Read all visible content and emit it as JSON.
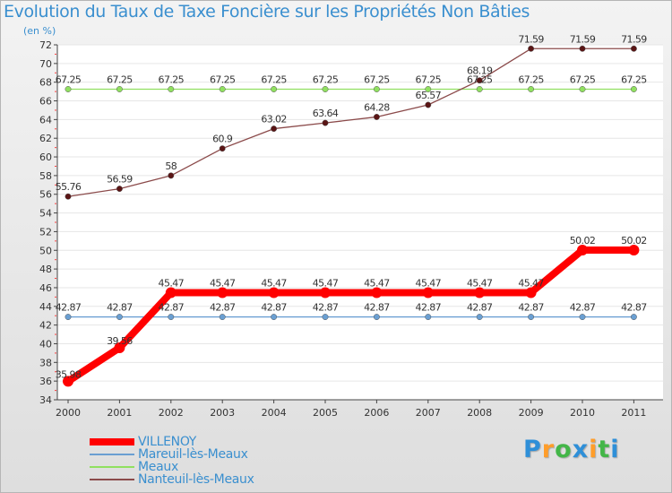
{
  "chart_data": {
    "type": "line",
    "title": "Evolution du Taux de Taxe Foncière sur les Propriétés Non Bâties",
    "ylabel": "(en %)",
    "xlabel": "",
    "ylim": [
      34,
      72
    ],
    "yticks": [
      34,
      36,
      38,
      40,
      42,
      44,
      46,
      48,
      50,
      52,
      54,
      56,
      58,
      60,
      62,
      64,
      66,
      68,
      70,
      72
    ],
    "categories": [
      "2000",
      "2001",
      "2002",
      "2003",
      "2004",
      "2005",
      "2006",
      "2007",
      "2008",
      "2009",
      "2010",
      "2011"
    ],
    "series": [
      {
        "name": "VILLENOY",
        "color": "#ff0000",
        "values": [
          35.98,
          39.56,
          45.47,
          45.47,
          45.47,
          45.47,
          45.47,
          45.47,
          45.47,
          45.47,
          50.02,
          50.02
        ],
        "labels": [
          "35.98",
          "39.56",
          "45.47",
          "45.47",
          "45.47",
          "45.47",
          "45.47",
          "45.47",
          "45.47",
          "45.47",
          "50.02",
          "50.02"
        ]
      },
      {
        "name": "Mareuil-lès-Meaux",
        "color": "#6a9fd2",
        "values": [
          42.87,
          42.87,
          42.87,
          42.87,
          42.87,
          42.87,
          42.87,
          42.87,
          42.87,
          42.87,
          42.87,
          42.87
        ],
        "labels": [
          "42.87",
          "42.87",
          "42.87",
          "42.87",
          "42.87",
          "42.87",
          "42.87",
          "42.87",
          "42.87",
          "42.87",
          "42.87",
          "42.87"
        ]
      },
      {
        "name": "Meaux",
        "color": "#90e060",
        "values": [
          67.25,
          67.25,
          67.25,
          67.25,
          67.25,
          67.25,
          67.25,
          67.25,
          67.25,
          67.25,
          67.25,
          67.25
        ],
        "labels": [
          "67.25",
          "67.25",
          "67.25",
          "67.25",
          "67.25",
          "67.25",
          "67.25",
          "67.25",
          "67.25",
          "67.25",
          "67.25",
          "67.25"
        ]
      },
      {
        "name": "Nanteuil-lès-Meaux",
        "color": "#8b4a4a",
        "values": [
          55.76,
          56.59,
          58.0,
          60.9,
          63.02,
          63.64,
          64.28,
          65.57,
          68.19,
          71.59,
          71.59,
          71.59
        ],
        "labels": [
          "55.76",
          "56.59",
          "58",
          "60.9",
          "63.02",
          "63.64",
          "64.28",
          "65.57",
          "68.19",
          "71.59",
          "71.59",
          "71.59"
        ]
      }
    ],
    "legend": "bottom-left"
  },
  "branding": {
    "logo_letters": [
      "P",
      "r",
      "o",
      "x",
      "i",
      "t",
      "i"
    ],
    "logo_colors": [
      "#2e8fd8",
      "#ff9d2a",
      "#43b648",
      "#2e8fd8",
      "#ff9d2a",
      "#43b648",
      "#2e8fd8"
    ]
  }
}
